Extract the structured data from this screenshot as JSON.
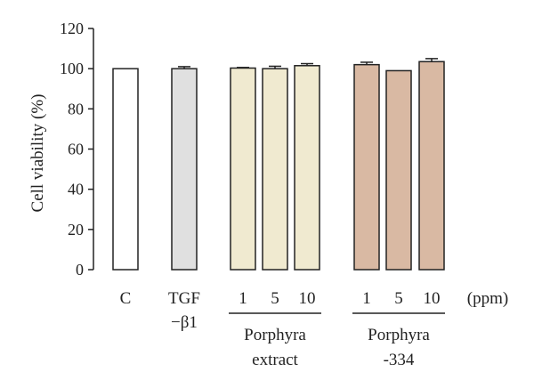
{
  "chart_data": {
    "type": "bar",
    "ylabel": "Cell viability (%)",
    "ylim": [
      0,
      120
    ],
    "yticks": [
      "0",
      "20",
      "40",
      "60",
      "80",
      "100",
      "120"
    ],
    "unit_label": "(ppm)",
    "categories": [
      "C",
      "TGF-β1",
      "1",
      "5",
      "10",
      "1",
      "5",
      "10"
    ],
    "values": [
      100,
      100,
      100.3,
      100,
      101.5,
      102,
      99,
      103.5
    ],
    "errors": [
      0,
      1.0,
      0.3,
      1.2,
      1.0,
      1.2,
      0,
      1.5
    ],
    "colors": [
      "#ffffff",
      "#e0e0e0",
      "#f0ead0",
      "#f0ead0",
      "#f0ead0",
      "#d9b9a3",
      "#d9b9a3",
      "#d9b9a3"
    ],
    "group_labels": {
      "control": "C",
      "tgf_line1": "TGF",
      "tgf_line2": "−β1",
      "porphyra_extract_line1": "Porphyra",
      "porphyra_extract_line2": "extract",
      "porphyra334_line1": "Porphyra",
      "porphyra334_line2": "-334"
    }
  }
}
